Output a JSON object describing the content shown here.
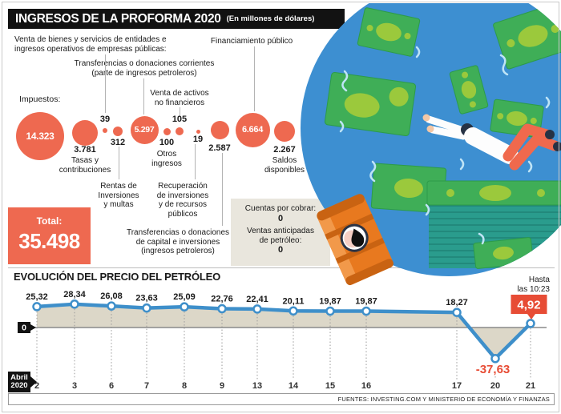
{
  "header": {
    "title": "INGRESOS DE LA PROFORMA 2020",
    "subtitle": "(En millones de dólares)"
  },
  "bubbles": {
    "items": [
      {
        "label": "Impuestos:",
        "value": "14.323"
      },
      {
        "label": "Tasas y\ncontribuciones",
        "value": "3.781"
      },
      {
        "label": "Venta de bienes y servicios de entidades e\ningresos operativos de empresas públicas:",
        "value": "39"
      },
      {
        "label": "Rentas de\nInversiones\ny multas",
        "value": "312"
      },
      {
        "label": "Transferencias o donaciones corrientes\n(parte de ingresos petroleros)",
        "value": "5.297"
      },
      {
        "label": "Otros\ningresos",
        "value": "100"
      },
      {
        "label": "Venta de activos\nno financieros",
        "value": "105"
      },
      {
        "label": "Recuperación\nde inversiones\ny de recursos\npúblicos",
        "value": "19"
      },
      {
        "label": "Transferencias o donaciones\nde capital e inversiones\n(ingresos petroleros)",
        "value": "2.587"
      },
      {
        "label": "Financiamiento público",
        "value": "6.664"
      },
      {
        "label": "Saldos\ndisponibles",
        "value": "2.267"
      }
    ],
    "total": {
      "label": "Total:",
      "value": "35.498"
    },
    "side_notes": [
      {
        "label": "Cuentas por cobrar:",
        "value": "0"
      },
      {
        "label": "Ventas anticipadas\nde petróleo:",
        "value": "0"
      }
    ]
  },
  "chart_data": {
    "type": "line",
    "title": "EVOLUCIÓN DEL PRECIO DEL PETRÓLEO",
    "x_axis_label": "Abril\n2020",
    "categories": [
      "2",
      "3",
      "6",
      "7",
      "8",
      "9",
      "13",
      "14",
      "15",
      "16",
      "17",
      "20",
      "21"
    ],
    "values": [
      25.32,
      28.34,
      26.08,
      23.63,
      25.09,
      22.76,
      22.41,
      20.11,
      19.87,
      19.87,
      18.27,
      -37.63,
      4.92
    ],
    "point_labels": [
      "25,32",
      "28,34",
      "26,08",
      "23,63",
      "25,09",
      "22,76",
      "22,41",
      "20,11",
      "19,87",
      "19,87",
      "18,27",
      "-37,63",
      "4,92"
    ],
    "baseline": 0,
    "baseline_label": "0",
    "annotation": {
      "text": "Hasta\nlas 10:23",
      "last_value_label": "4,92",
      "min_value_label": "-37,63"
    },
    "source": "FUENTES: INVESTING.COM Y MINISTERIO DE ECONOMÍA Y FINANZAS",
    "line_color": "#3e8fca",
    "fill_color": "#dcd7c8",
    "accent_color": "#e74c35",
    "ylim": [
      -40,
      30
    ],
    "grid": "dotted-vertical",
    "legend": "none"
  },
  "colors": {
    "bubble": "#ee6950",
    "accent": "#e74c35",
    "circle_blue": "#3d8fd1",
    "black_bar": "#121212"
  }
}
